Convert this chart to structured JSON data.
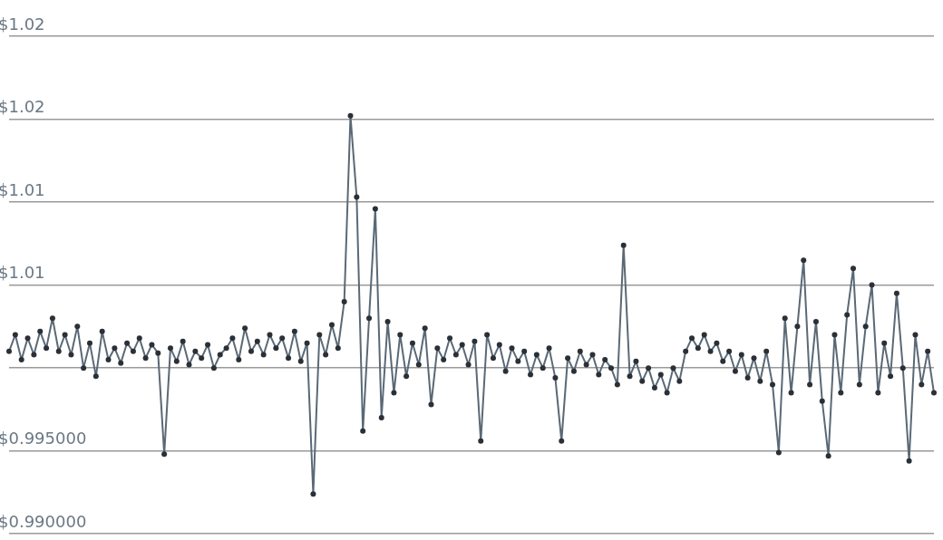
{
  "chart_data": {
    "type": "line",
    "categories": [
      null,
      null,
      null,
      null,
      null,
      null,
      null,
      null,
      null,
      null,
      null,
      null,
      null,
      null,
      null,
      null,
      null,
      null,
      null,
      null,
      null,
      null,
      null,
      null,
      null,
      null,
      null,
      null,
      null,
      null,
      null,
      null,
      null,
      null,
      null,
      null,
      null,
      null,
      null,
      null,
      null,
      null,
      null,
      null,
      null,
      null,
      null,
      null,
      null,
      null,
      null,
      null,
      null,
      null,
      null,
      null,
      null,
      null,
      null,
      null,
      null,
      null,
      null,
      null,
      null,
      null,
      null,
      null,
      null,
      null,
      null,
      null,
      null,
      null,
      null,
      null,
      null,
      null,
      null,
      null,
      null,
      null,
      null,
      null,
      null,
      null,
      null,
      null,
      null,
      null,
      null,
      null,
      null,
      null,
      null,
      null,
      null,
      null,
      null,
      null,
      null,
      null,
      null,
      null,
      null,
      null,
      null,
      null,
      null,
      null,
      null,
      null,
      null,
      null,
      null,
      null,
      null,
      null,
      null,
      null,
      null,
      null,
      null,
      null,
      null,
      null,
      null,
      null,
      null,
      null,
      null,
      null,
      null,
      null,
      null,
      null,
      null,
      null,
      null,
      null,
      null,
      null,
      null,
      null,
      null,
      null,
      null,
      null,
      null,
      null
    ],
    "series": [
      {
        "color": "#5a6976",
        "values": [
          1.001,
          1.002,
          1.0005,
          1.0018,
          1.0008,
          1.0022,
          1.0012,
          1.003,
          1.001,
          1.002,
          1.0008,
          1.0025,
          1.0,
          1.0015,
          0.9995,
          1.0022,
          1.0005,
          1.0012,
          1.0003,
          1.0015,
          1.001,
          1.0018,
          1.0006,
          1.0014,
          1.0009,
          0.9948,
          1.0012,
          1.0004,
          1.0016,
          1.0002,
          1.001,
          1.0006,
          1.0014,
          1.0,
          1.0008,
          1.0012,
          1.0018,
          1.0005,
          1.0024,
          1.001,
          1.0016,
          1.0008,
          1.002,
          1.0012,
          1.0018,
          1.0006,
          1.0022,
          1.0004,
          1.0015,
          0.9924,
          1.002,
          1.0008,
          1.0026,
          1.0012,
          1.004,
          1.0152,
          1.0103,
          0.9962,
          1.003,
          1.0096,
          0.997,
          1.0028,
          0.9985,
          1.002,
          0.9995,
          1.0015,
          1.0002,
          1.0024,
          0.9978,
          1.0012,
          1.0005,
          1.0018,
          1.0008,
          1.0014,
          1.0002,
          1.0016,
          0.9956,
          1.002,
          1.0006,
          1.0014,
          0.9998,
          1.0012,
          1.0004,
          1.001,
          0.9996,
          1.0008,
          1.0,
          1.0012,
          0.9994,
          0.9956,
          1.0006,
          0.9998,
          1.001,
          1.0002,
          1.0008,
          0.9996,
          1.0005,
          1.0,
          0.999,
          1.0074,
          0.9995,
          1.0004,
          0.9992,
          1.0,
          0.9988,
          0.9996,
          0.9985,
          1.0,
          0.9992,
          1.001,
          1.0018,
          1.0012,
          1.002,
          1.001,
          1.0015,
          1.0004,
          1.001,
          0.9998,
          1.0008,
          0.9994,
          1.0006,
          0.9992,
          1.001,
          0.999,
          0.9949,
          1.003,
          0.9985,
          1.0025,
          1.0065,
          0.999,
          1.0028,
          0.998,
          0.9947,
          1.002,
          0.9985,
          1.0032,
          1.006,
          0.999,
          1.0025,
          1.005,
          0.9985,
          1.0015,
          0.9995,
          1.0045,
          1.0,
          0.9944,
          1.002,
          0.999,
          1.001,
          0.9985
        ]
      }
    ],
    "ylim": [
      0.99,
      1.02
    ],
    "yticks": [
      {
        "value": 0.99,
        "label": "$0.990000"
      },
      {
        "value": 0.995,
        "label": "$0.995000"
      },
      {
        "value": 1.0,
        "label": null
      },
      {
        "value": 1.005,
        "label": "$1.01"
      },
      {
        "value": 1.01,
        "label": "$1.01"
      },
      {
        "value": 1.015,
        "label": "$1.02"
      },
      {
        "value": 1.02,
        "label": "$1.02"
      }
    ],
    "grid": "y",
    "marker": "circle",
    "line_style": "solid"
  }
}
